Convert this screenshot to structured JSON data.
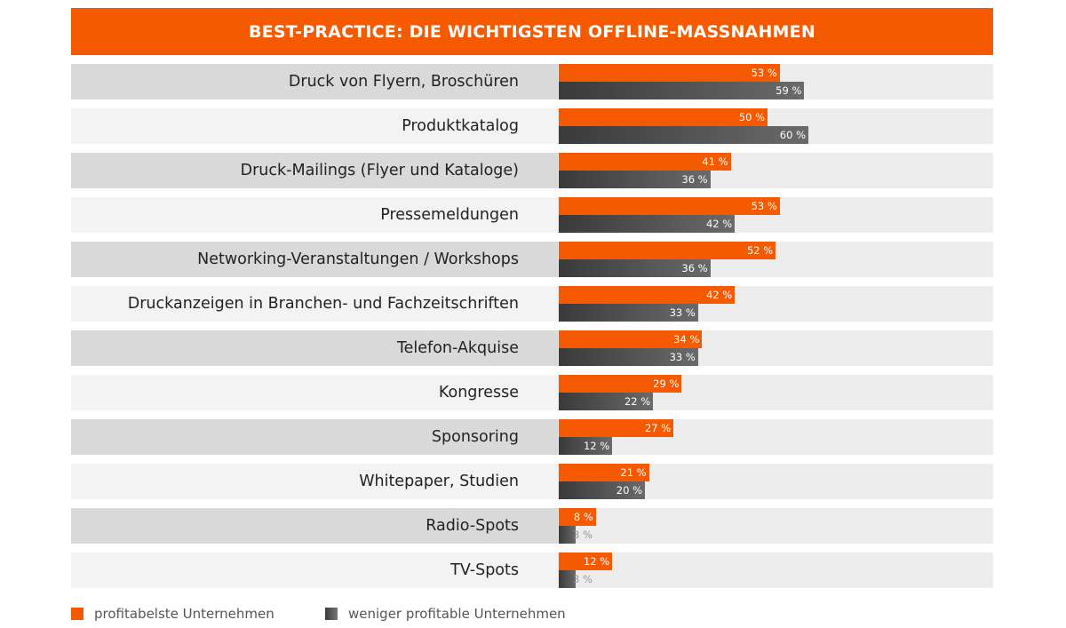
{
  "chart_data": {
    "type": "bar",
    "title": "BEST-PRACTICE: DIE WICHTIGSTEN OFFLINE-MASSNAHMEN",
    "orientation": "horizontal",
    "unit": "%",
    "categories": [
      "Druck von Flyern, Broschüren",
      "Produktkatalog",
      "Druck-Mailings (Flyer und Kataloge)",
      "Pressemeldungen",
      "Networking-Veranstaltungen / Workshops",
      "Druckanzeigen in Branchen- und Fachzeitschriften",
      "Telefon-Akquise",
      "Kongresse",
      "Sponsoring",
      "Whitepaper, Studien",
      "Radio-Spots",
      "TV-Spots"
    ],
    "series": [
      {
        "name": "profitabelste Unternehmen",
        "color": "#f55a00",
        "values": [
          53,
          50,
          41,
          53,
          52,
          42,
          34,
          29,
          27,
          21,
          8,
          12
        ]
      },
      {
        "name": "weniger profitable Unternehmen",
        "color": "#4a4a4a",
        "values": [
          59,
          60,
          36,
          42,
          36,
          33,
          33,
          22,
          12,
          20,
          3,
          3
        ]
      }
    ],
    "legend": "bottom-left"
  }
}
